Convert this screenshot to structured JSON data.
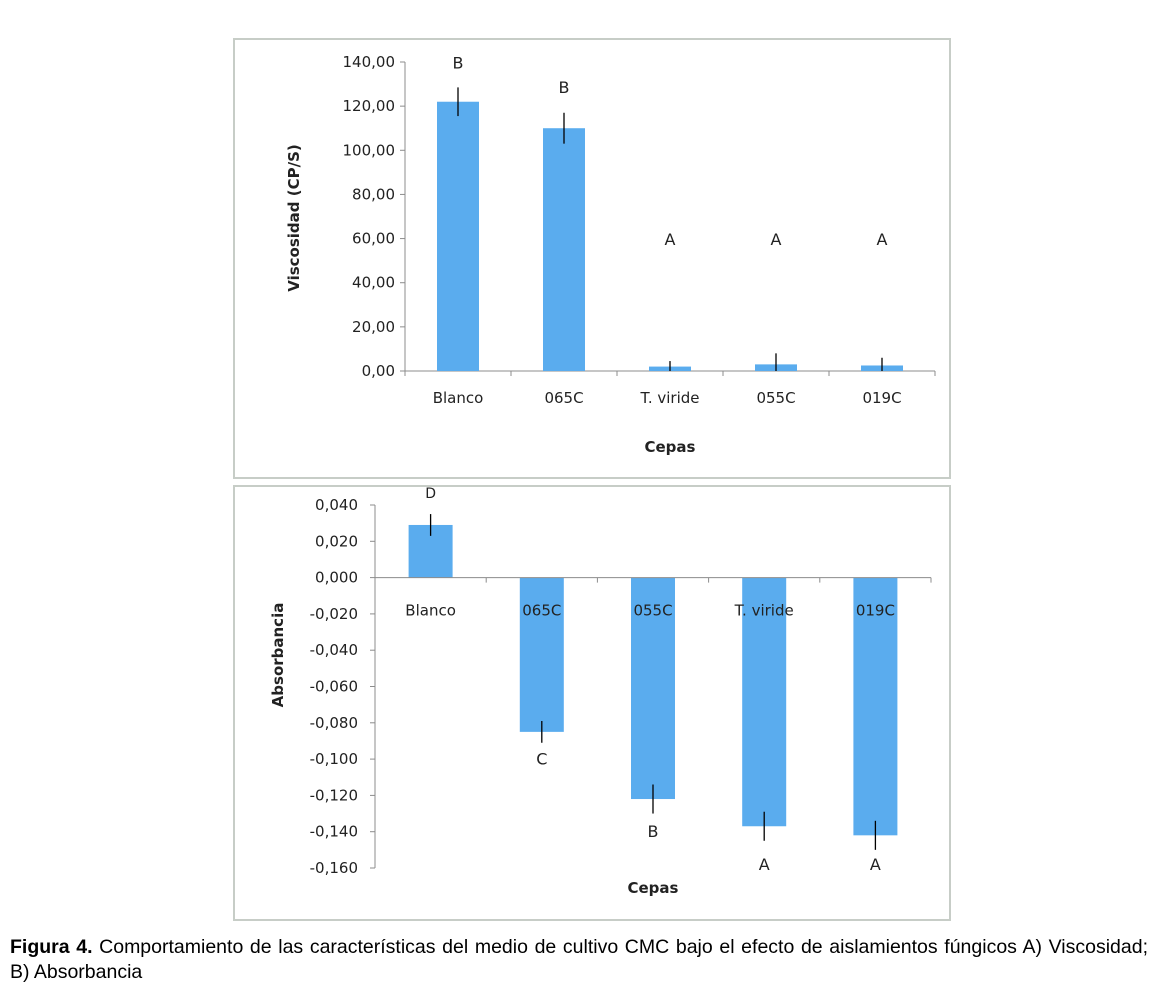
{
  "chart_data": [
    {
      "id": "A",
      "type": "bar",
      "xlabel": "Cepas",
      "ylabel": "Viscosidad  (CP/S)",
      "categories": [
        "Blanco",
        "065C",
        "T. viride",
        "055C",
        "019C"
      ],
      "series": [
        {
          "values": [
            122.0,
            110.0,
            2.0,
            3.0,
            2.5
          ],
          "errors": [
            6.5,
            7.0,
            2.5,
            5.0,
            3.5
          ],
          "letters": [
            "B",
            "B",
            "A",
            "A",
            "A"
          ]
        }
      ],
      "ylim": [
        0,
        140
      ],
      "yticks": [
        "0,00",
        "20,00",
        "40,00",
        "60,00",
        "80,00",
        "100,00",
        "120,00",
        "140,00"
      ],
      "ytick_values": [
        0,
        20,
        40,
        60,
        80,
        100,
        120,
        140
      ],
      "letter_values": [
        137,
        126,
        57,
        57,
        57
      ],
      "bar_color": "#5aacee",
      "grid": false
    },
    {
      "id": "B",
      "type": "bar",
      "xlabel": "Cepas",
      "ylabel": "Absorbancia",
      "categories": [
        "Blanco",
        "065C",
        "055C",
        "T. viride",
        "019C"
      ],
      "series": [
        {
          "values": [
            0.029,
            -0.085,
            -0.122,
            -0.137,
            -0.142
          ],
          "errors": [
            0.006,
            0.006,
            0.008,
            0.008,
            0.008
          ],
          "letters": [
            "D",
            "C",
            "B",
            "A",
            "A"
          ]
        }
      ],
      "ylim": [
        -0.16,
        0.04
      ],
      "yticks": [
        "0,040",
        "0,020",
        "0,000",
        "-0,020",
        "-0,040",
        "-0,060",
        "-0,080",
        "-0,100",
        "-0,120",
        "-0,140",
        "-0,160"
      ],
      "ytick_values": [
        0.04,
        0.02,
        0.0,
        -0.02,
        -0.04,
        -0.06,
        -0.08,
        -0.1,
        -0.12,
        -0.14,
        -0.16
      ],
      "letter_values": [
        0.044,
        -0.103,
        -0.143,
        -0.161,
        -0.161
      ],
      "bar_color": "#5aacee",
      "grid": false
    }
  ],
  "caption": {
    "label": "Figura 4.",
    "text": " Comportamiento de las características del medio de cultivo CMC bajo el efecto de aislamientos fúngicos A) Viscosidad; B) Absorbancia"
  }
}
